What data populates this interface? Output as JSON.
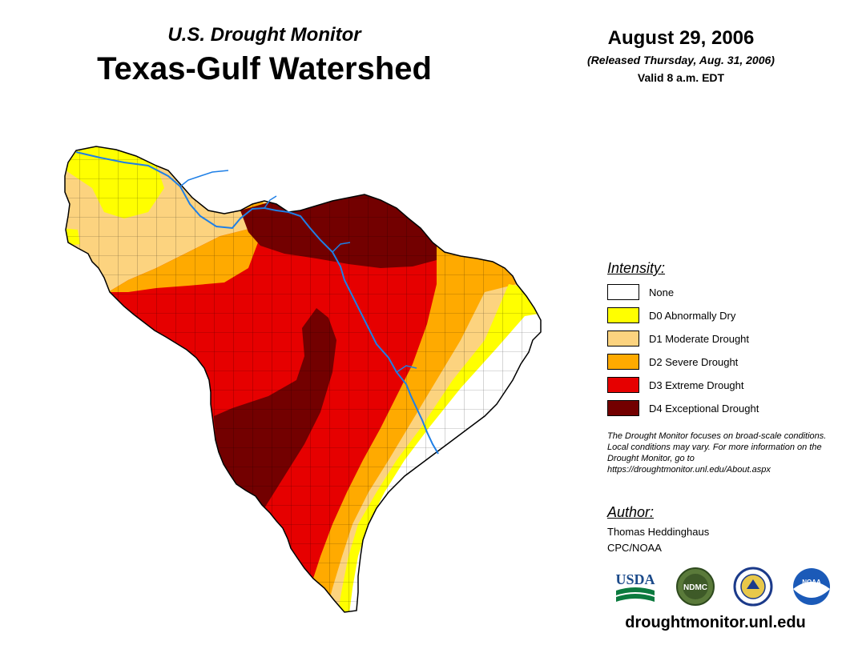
{
  "header": {
    "subtitle": "U.S. Drought Monitor",
    "title": "Texas-Gulf Watershed",
    "date": "August 29, 2006",
    "released": "(Released Thursday, Aug. 31, 2006)",
    "valid": "Valid 8 a.m. EDT"
  },
  "legend": {
    "heading": "Intensity:",
    "items": [
      {
        "label": "None",
        "color": "#ffffff"
      },
      {
        "label": "D0 Abnormally Dry",
        "color": "#ffff00"
      },
      {
        "label": "D1 Moderate Drought",
        "color": "#fcd37f"
      },
      {
        "label": "D2 Severe Drought",
        "color": "#ffaa00"
      },
      {
        "label": "D3 Extreme Drought",
        "color": "#e60000"
      },
      {
        "label": "D4 Exceptional Drought",
        "color": "#730000"
      }
    ]
  },
  "note": "The Drought Monitor focuses on broad-scale conditions. Local conditions may vary. For more information on the Drought Monitor, go to https://droughtmonitor.unl.edu/About.aspx",
  "author": {
    "heading": "Author:",
    "name": "Thomas Heddinghaus",
    "org": "CPC/NOAA"
  },
  "logos": {
    "usda": "USDA",
    "ndmc": "NDMC",
    "commerce": "Department of Commerce seal",
    "noaa": "NOAA"
  },
  "footer": {
    "url": "droughtmonitor.unl.edu"
  },
  "colors": {
    "river": "#1e7fe6",
    "boundary": "#000000"
  }
}
